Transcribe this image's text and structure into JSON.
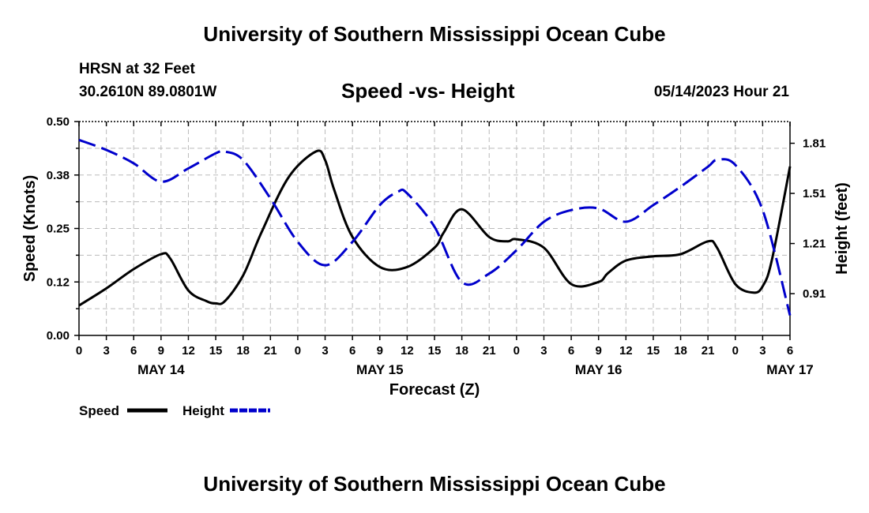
{
  "header": {
    "title": "University of Southern Mississippi Ocean Cube",
    "station": "HRSN at 32 Feet",
    "coords": "30.2610N  89.0801W",
    "chart_title": "Speed -vs- Height",
    "datetime": "05/14/2023 Hour 21"
  },
  "footer": {
    "title": "University of Southern Mississippi Ocean Cube"
  },
  "chart_data": {
    "type": "line",
    "title": "Speed -vs- Height",
    "xlabel": "Forecast (Z)",
    "ylabel": "Speed (Knots)",
    "y2label": "Height (feet)",
    "x_ticks": [
      "0",
      "3",
      "6",
      "9",
      "12",
      "15",
      "18",
      "21",
      "0",
      "3",
      "6",
      "9",
      "12",
      "15",
      "18",
      "21",
      "0",
      "3",
      "6",
      "9",
      "12",
      "15",
      "18",
      "21",
      "0",
      "3",
      "6"
    ],
    "date_labels": [
      {
        "label": "MAY 14",
        "hour": 9
      },
      {
        "label": "MAY 15",
        "hour": 33
      },
      {
        "label": "MAY 16",
        "hour": 57
      },
      {
        "label": "MAY 17",
        "hour": 78
      }
    ],
    "xlim": [
      0,
      78
    ],
    "ylim": [
      0,
      0.5
    ],
    "y_ticks": [
      "0.00",
      "0.12",
      "0.25",
      "0.38",
      "0.50"
    ],
    "y_tick_values": [
      0,
      0.125,
      0.25,
      0.375,
      0.5
    ],
    "y2lim": [
      0.66,
      1.94
    ],
    "y2_ticks": [
      "0.91",
      "1.21",
      "1.51",
      "1.81"
    ],
    "y2_tick_values": [
      0.91,
      1.21,
      1.51,
      1.81
    ],
    "legend": [
      {
        "name": "Speed",
        "color": "#000000",
        "dashed": false
      },
      {
        "name": "Height",
        "color": "#0000cc",
        "dashed": true
      }
    ],
    "series": [
      {
        "name": "Speed",
        "axis": "left",
        "color": "#000000",
        "x": [
          0,
          3,
          6,
          9,
          10,
          12,
          14,
          15,
          16,
          18,
          20,
          23,
          26,
          27,
          28,
          30,
          33,
          36,
          39,
          40,
          42,
          45,
          47,
          48,
          51,
          54,
          57,
          58,
          60,
          63,
          66,
          69,
          70,
          72,
          74,
          75,
          76,
          78
        ],
        "y": [
          0.07,
          0.11,
          0.155,
          0.19,
          0.18,
          0.105,
          0.08,
          0.075,
          0.08,
          0.14,
          0.24,
          0.37,
          0.43,
          0.41,
          0.34,
          0.23,
          0.16,
          0.16,
          0.205,
          0.24,
          0.295,
          0.23,
          0.22,
          0.225,
          0.205,
          0.12,
          0.125,
          0.145,
          0.175,
          0.185,
          0.19,
          0.22,
          0.205,
          0.12,
          0.1,
          0.115,
          0.175,
          0.395
        ]
      },
      {
        "name": "Height",
        "axis": "right",
        "color": "#0000cc",
        "x": [
          0,
          3,
          6,
          9,
          12,
          15,
          16,
          18,
          21,
          24,
          27,
          30,
          33,
          35,
          36,
          39,
          42,
          45,
          48,
          51,
          54,
          57,
          60,
          63,
          66,
          69,
          70,
          72,
          75,
          78
        ],
        "y": [
          1.83,
          1.77,
          1.69,
          1.58,
          1.66,
          1.75,
          1.76,
          1.71,
          1.48,
          1.22,
          1.08,
          1.22,
          1.44,
          1.52,
          1.51,
          1.31,
          0.98,
          1.03,
          1.17,
          1.34,
          1.41,
          1.42,
          1.34,
          1.44,
          1.55,
          1.67,
          1.71,
          1.68,
          1.41,
          0.78
        ]
      }
    ]
  }
}
